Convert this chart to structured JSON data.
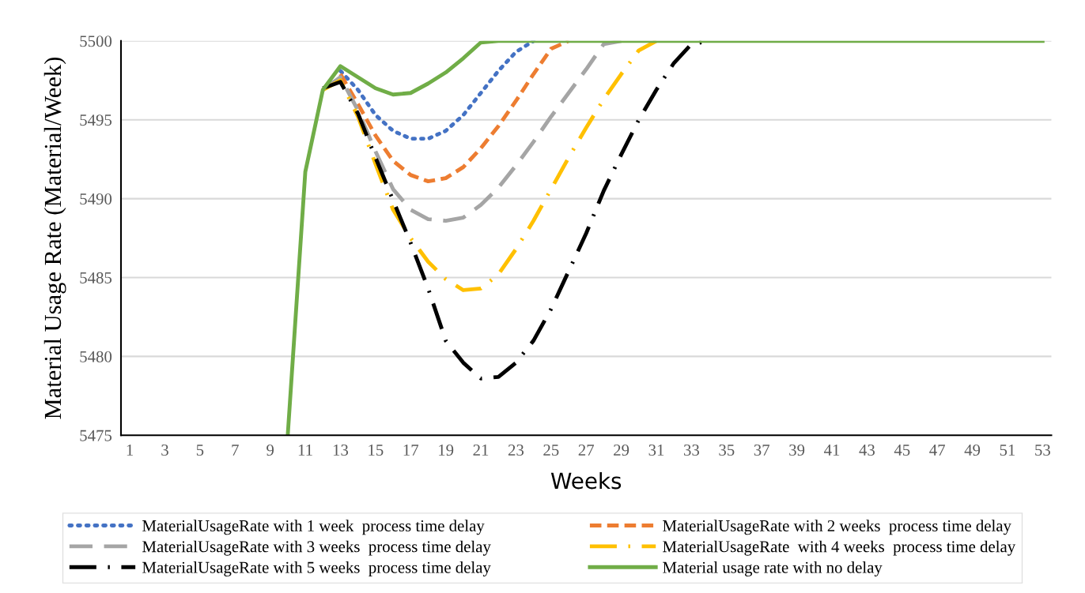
{
  "chart_data": {
    "type": "line",
    "xlabel": "Weeks",
    "ylabel": "Material Usage Rate (Material/Week)",
    "categories": [
      "1",
      null,
      "3",
      null,
      "5",
      null,
      "7",
      null,
      "9",
      null,
      "11",
      null,
      "13",
      null,
      "15",
      null,
      "17",
      null,
      "19",
      null,
      "21",
      null,
      "23",
      null,
      "25",
      null,
      "27",
      null,
      "29",
      null,
      "31",
      null,
      "33",
      null,
      "35",
      null,
      "37",
      null,
      "39",
      null,
      "41",
      null,
      "43",
      null,
      "45",
      null,
      "47",
      null,
      "49",
      null,
      "51",
      null,
      "53"
    ],
    "ylim": [
      5475,
      5500
    ],
    "yticks": [
      5475,
      5480,
      5485,
      5490,
      5495,
      5500
    ],
    "grid": "y",
    "legend": "bottom",
    "marker": "none",
    "series": [
      {
        "name": "MaterialUsageRate with 1 week  process time delay",
        "color": "#4472c4",
        "line_style": "dotted",
        "values": [
          null,
          null,
          null,
          null,
          null,
          null,
          null,
          null,
          null,
          null,
          null,
          null,
          5498.1,
          5496.9,
          5495.3,
          5494.3,
          5493.8,
          5493.8,
          5494.3,
          5495.3,
          5496.7,
          5498.1,
          5499.3,
          5500,
          null,
          null,
          null,
          null,
          null,
          null,
          null,
          null,
          null,
          null,
          null,
          null,
          null,
          null,
          null,
          null,
          null,
          null,
          null,
          null,
          null,
          null,
          null,
          null,
          null,
          null,
          null,
          null,
          null
        ]
      },
      {
        "name": "MaterialUsageRate with 2 weeks  process time delay",
        "color": "#ed7d31",
        "line_style": "dashed",
        "values": [
          null,
          null,
          null,
          null,
          null,
          null,
          null,
          null,
          null,
          null,
          null,
          null,
          5497.9,
          5496.0,
          5494.0,
          5492.4,
          5491.5,
          5491.1,
          5491.3,
          5492.0,
          5493.2,
          5494.6,
          5496.2,
          5497.9,
          5499.5,
          5500,
          null,
          null,
          null,
          null,
          null,
          null,
          null,
          null,
          null,
          null,
          null,
          null,
          null,
          null,
          null,
          null,
          null,
          null,
          null,
          null,
          null,
          null,
          null,
          null,
          null,
          null,
          null
        ]
      },
      {
        "name": "MaterialUsageRate with 3 weeks  process time delay",
        "color": "#a5a5a5",
        "line_style": "longdash",
        "values": [
          null,
          null,
          null,
          null,
          null,
          null,
          null,
          null,
          null,
          null,
          null,
          5496.9,
          5497.7,
          5495.6,
          5493.0,
          5490.6,
          5489.3,
          5488.7,
          5488.6,
          5488.8,
          5489.6,
          5490.7,
          5492.1,
          5493.6,
          5495.2,
          5496.7,
          5498.2,
          5499.8,
          5500,
          null,
          null,
          null,
          null,
          null,
          null,
          null,
          null,
          null,
          null,
          null,
          null,
          null,
          null,
          null,
          null,
          null,
          null,
          null,
          null,
          null,
          null,
          null,
          null
        ]
      },
      {
        "name": "MaterialUsageRate  with 4 weeks  process time delay",
        "color": "#ffc000",
        "line_style": "longdashdot",
        "values": [
          null,
          null,
          null,
          null,
          null,
          null,
          null,
          null,
          null,
          null,
          null,
          5496.9,
          5497.5,
          5495.2,
          5492.2,
          5489.3,
          5487.5,
          5486.0,
          5484.9,
          5484.2,
          5484.3,
          5485.2,
          5486.8,
          5488.6,
          5490.6,
          5492.6,
          5494.5,
          5496.3,
          5497.9,
          5499.4,
          5500,
          null,
          null,
          null,
          null,
          null,
          null,
          null,
          null,
          null,
          null,
          null,
          null,
          null,
          null,
          null,
          null,
          null,
          null,
          null,
          null,
          null,
          null
        ]
      },
      {
        "name": "MaterialUsageRate with 5 weeks  process time delay",
        "color": "#000000",
        "line_style": "dashdot",
        "values": [
          null,
          null,
          null,
          null,
          null,
          null,
          null,
          null,
          null,
          null,
          null,
          5497.0,
          5497.4,
          5495.4,
          5492.6,
          5489.9,
          5487.2,
          5484.3,
          5481.0,
          5479.6,
          5478.6,
          5478.7,
          5479.6,
          5481.0,
          5483.0,
          5485.4,
          5487.8,
          5490.5,
          5492.8,
          5495.0,
          5496.9,
          5498.6,
          5499.8,
          5500,
          null,
          null,
          null,
          null,
          null,
          null,
          null,
          null,
          null,
          null,
          null,
          null,
          null,
          null,
          null,
          null,
          null,
          null,
          null
        ]
      },
      {
        "name": "Material usage rate with no delay",
        "color": "#70ad47",
        "line_style": "solid",
        "values": [
          null,
          null,
          null,
          null,
          null,
          null,
          null,
          null,
          null,
          5475,
          5491.7,
          5496.9,
          5498.4,
          5497.7,
          5497.0,
          5496.6,
          5496.7,
          5497.3,
          5498.0,
          5498.9,
          5499.9,
          5500,
          5500,
          5500,
          5500,
          5500,
          5500,
          5500,
          5500,
          5500,
          5500,
          5500,
          5500,
          5500,
          5500,
          5500,
          5500,
          5500,
          5500,
          5500,
          5500,
          5500,
          5500,
          5500,
          5500,
          5500,
          5500,
          5500,
          5500,
          5500,
          5500,
          5500,
          5500
        ]
      }
    ]
  }
}
